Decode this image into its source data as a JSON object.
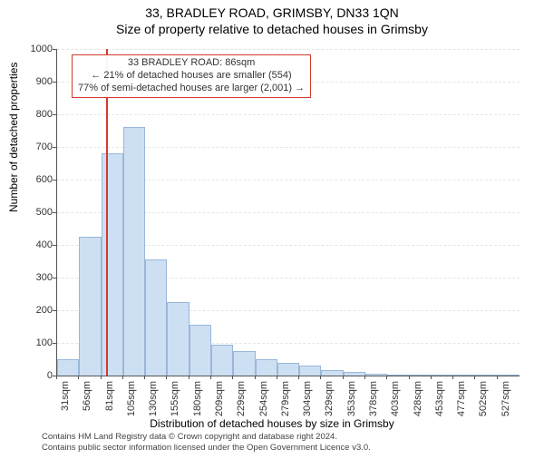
{
  "header": {
    "address": "33, BRADLEY ROAD, GRIMSBY, DN33 1QN",
    "title": "Size of property relative to detached houses in Grimsby"
  },
  "axes": {
    "y_title": "Number of detached properties",
    "x_title": "Distribution of detached houses by size in Grimsby",
    "ylim": [
      0,
      1000
    ],
    "ytick_step": 100,
    "title_fontsize": 12,
    "tick_fontsize": 11,
    "grid_color": "#e5e5e5"
  },
  "chart": {
    "type": "histogram",
    "bar_fill": "#cddff2",
    "bar_stroke": "#9ab7d8",
    "background_color": "#ffffff",
    "bin_width_sqm": 25,
    "bin_starts": [
      31,
      56,
      81,
      105,
      130,
      155,
      180,
      209,
      229,
      254,
      279,
      304,
      329,
      353,
      378,
      403,
      428,
      453,
      477,
      502,
      527
    ],
    "counts": [
      50,
      425,
      680,
      760,
      355,
      225,
      155,
      95,
      75,
      50,
      40,
      30,
      18,
      10,
      5,
      2,
      1,
      0,
      0,
      0,
      0
    ],
    "xtick_suffix": "sqm"
  },
  "marker": {
    "x_sqm": 86,
    "color": "#d33a2f"
  },
  "annotation": {
    "line1": "33 BRADLEY ROAD: 86sqm",
    "line2": "← 21% of detached houses are smaller (554)",
    "line3": "77% of semi-detached houses are larger (2,001) →",
    "border_color": "#d33a2f",
    "text_color": "#333333",
    "font_size": 11
  },
  "attribution": {
    "line1": "Contains HM Land Registry data © Crown copyright and database right 2024.",
    "line2": "Contains public sector information licensed under the Open Government Licence v3.0."
  }
}
